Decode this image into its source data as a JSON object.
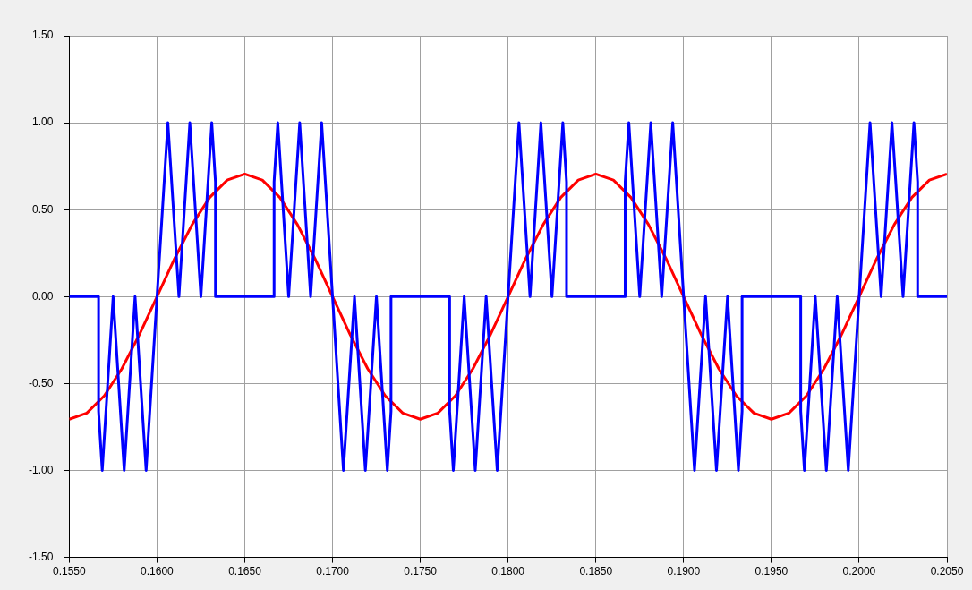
{
  "chart_data": {
    "type": "line",
    "grid": true,
    "legend": false,
    "marker": "none",
    "line_style": "solid",
    "xlim": [
      0.155,
      0.205
    ],
    "xticks": [
      {
        "value": 0.155,
        "label": "0.1550"
      },
      {
        "value": 0.16,
        "label": "0.1600"
      },
      {
        "value": 0.165,
        "label": "0.1650"
      },
      {
        "value": 0.17,
        "label": "0.1700"
      },
      {
        "value": 0.175,
        "label": "0.1750"
      },
      {
        "value": 0.18,
        "label": "0.1800"
      },
      {
        "value": 0.185,
        "label": "0.1850"
      },
      {
        "value": 0.19,
        "label": "0.1900"
      },
      {
        "value": 0.195,
        "label": "0.1950"
      },
      {
        "value": 0.2,
        "label": "0.2000"
      },
      {
        "value": 0.205,
        "label": "0.2050"
      }
    ],
    "ylim": [
      -1.5,
      1.5
    ],
    "yticks": [
      {
        "value": -1.5,
        "label": "-1.50"
      },
      {
        "value": -1,
        "label": "-1.00"
      },
      {
        "value": -0.5,
        "label": "-0.50"
      },
      {
        "value": 0,
        "label": "0.00"
      },
      {
        "value": 0.5,
        "label": "0.50"
      },
      {
        "value": 1,
        "label": "1.00"
      },
      {
        "value": 1.5,
        "label": "1.50"
      }
    ],
    "series": [
      {
        "color": "#0000ff",
        "x": [
          0.155,
          0.15667,
          0.15667,
          0.15688,
          0.1575,
          0.15813,
          0.15875,
          0.15938,
          0.16,
          0.16062,
          0.16125,
          0.16187,
          0.1625,
          0.16312,
          0.16333,
          0.16333,
          0.16667,
          0.16667,
          0.16688,
          0.1675,
          0.16813,
          0.16875,
          0.16938,
          0.17,
          0.17062,
          0.17125,
          0.17187,
          0.1725,
          0.17312,
          0.17333,
          0.17333,
          0.17667,
          0.17667,
          0.17688,
          0.1775,
          0.17813,
          0.17875,
          0.17938,
          0.18,
          0.18062,
          0.18125,
          0.18187,
          0.1825,
          0.18312,
          0.18333,
          0.18333,
          0.18667,
          0.18667,
          0.18688,
          0.1875,
          0.18813,
          0.18875,
          0.18938,
          0.19,
          0.19062,
          0.19125,
          0.19187,
          0.1925,
          0.19312,
          0.19333,
          0.19333,
          0.19667,
          0.19667,
          0.19688,
          0.1975,
          0.19813,
          0.19875,
          0.19938,
          0.2,
          0.20062,
          0.20125,
          0.20187,
          0.2025,
          0.20312,
          0.20333,
          0.20333,
          0.205
        ],
        "values": [
          0,
          0,
          -0.66,
          -1,
          0,
          -1,
          0,
          -1,
          0,
          1,
          0,
          1,
          0,
          1,
          0.66,
          0,
          0,
          0.66,
          1,
          0,
          1,
          0,
          1,
          0,
          -1,
          0,
          -1,
          0,
          -1,
          -0.66,
          0,
          0,
          -0.66,
          -1,
          0,
          -1,
          0,
          -1,
          0,
          1,
          0,
          1,
          0,
          1,
          0.66,
          0,
          0,
          0.66,
          1,
          0,
          1,
          0,
          1,
          0,
          -1,
          0,
          -1,
          0,
          -1,
          -0.66,
          0,
          0,
          -0.66,
          -1,
          0,
          -1,
          0,
          -1,
          0,
          1,
          0,
          1,
          0,
          1,
          0.66,
          0,
          0
        ]
      },
      {
        "color": "#ff0000",
        "x": [
          0.155,
          0.156,
          0.157,
          0.158,
          0.159,
          0.16,
          0.161,
          0.162,
          0.163,
          0.164,
          0.165,
          0.166,
          0.167,
          0.168,
          0.169,
          0.17,
          0.171,
          0.172,
          0.173,
          0.174,
          0.175,
          0.176,
          0.177,
          0.178,
          0.179,
          0.18,
          0.181,
          0.182,
          0.183,
          0.184,
          0.185,
          0.186,
          0.187,
          0.188,
          0.189,
          0.19,
          0.191,
          0.192,
          0.193,
          0.194,
          0.195,
          0.196,
          0.197,
          0.198,
          0.199,
          0.2,
          0.201,
          0.202,
          0.203,
          0.204,
          0.205
        ],
        "values": [
          -0.705,
          -0.67,
          -0.57,
          -0.414,
          -0.218,
          0,
          0.218,
          0.414,
          0.57,
          0.67,
          0.705,
          0.67,
          0.57,
          0.414,
          0.218,
          0,
          -0.218,
          -0.414,
          -0.57,
          -0.67,
          -0.705,
          -0.67,
          -0.57,
          -0.414,
          -0.218,
          0,
          0.218,
          0.414,
          0.57,
          0.67,
          0.705,
          0.67,
          0.57,
          0.414,
          0.218,
          0,
          -0.218,
          -0.414,
          -0.57,
          -0.67,
          -0.705,
          -0.67,
          -0.57,
          -0.414,
          -0.218,
          0,
          0.218,
          0.414,
          0.57,
          0.67,
          0.705
        ]
      }
    ]
  }
}
